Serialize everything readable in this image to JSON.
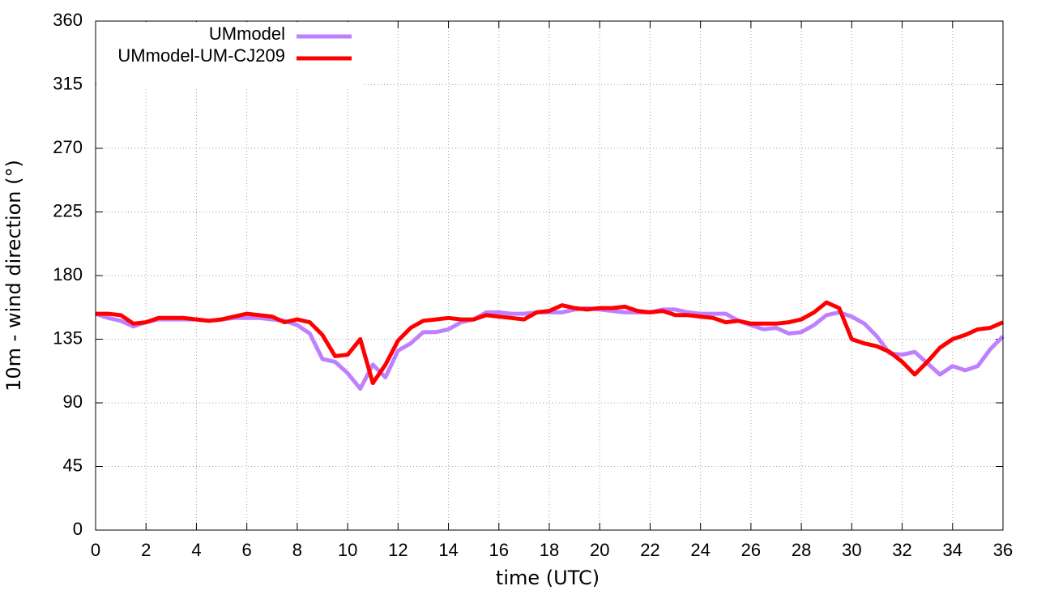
{
  "chart_data": {
    "type": "line",
    "x_label": "time (UTC)",
    "y_label": "10m - wind direction (°)",
    "x": [
      0,
      0.5,
      1,
      1.5,
      2,
      2.5,
      3,
      3.5,
      4,
      4.5,
      5,
      5.5,
      6,
      6.5,
      7,
      7.5,
      8,
      8.5,
      9,
      9.5,
      10,
      10.5,
      11,
      11.5,
      12,
      12.5,
      13,
      13.5,
      14,
      14.5,
      15,
      15.5,
      16,
      16.5,
      17,
      17.5,
      18,
      18.5,
      19,
      19.5,
      20,
      20.5,
      21,
      21.5,
      22,
      22.5,
      23,
      23.5,
      24,
      24.5,
      25,
      25.5,
      26,
      26.5,
      27,
      27.5,
      28,
      28.5,
      29,
      29.5,
      30,
      30.5,
      31,
      31.5,
      32,
      32.5,
      33,
      33.5,
      34,
      34.5,
      35,
      35.5,
      36
    ],
    "series": [
      {
        "name": "UMmodel",
        "color": "#bf80ff",
        "values": [
          153,
          150,
          148,
          144,
          147,
          149,
          149,
          149,
          149,
          148,
          149,
          150,
          150,
          150,
          149,
          148,
          145,
          139,
          121,
          119,
          111,
          100,
          117,
          108,
          127,
          132,
          140,
          140,
          142,
          147,
          149,
          154,
          154,
          153,
          153,
          154,
          154,
          154,
          156,
          157,
          156,
          155,
          154,
          154,
          154,
          156,
          156,
          154,
          153,
          153,
          153,
          148,
          145,
          142,
          143,
          139,
          140,
          145,
          152,
          154,
          151,
          146,
          137,
          125,
          124,
          126,
          118,
          110,
          116,
          113,
          116,
          128,
          137
        ]
      },
      {
        "name": "UMmodel-UM-CJ209",
        "color": "#ff0000",
        "values": [
          153,
          153,
          152,
          146,
          147,
          150,
          150,
          150,
          149,
          148,
          149,
          151,
          153,
          152,
          151,
          147,
          149,
          147,
          138,
          123,
          124,
          135,
          104,
          117,
          134,
          143,
          148,
          149,
          150,
          149,
          149,
          152,
          151,
          150,
          149,
          154,
          155,
          159,
          157,
          156,
          157,
          157,
          158,
          155,
          154,
          155,
          152,
          152,
          151,
          150,
          147,
          148,
          146,
          146,
          146,
          147,
          149,
          154,
          161,
          157,
          135,
          132,
          130,
          126,
          119,
          110,
          119,
          129,
          135,
          138,
          142,
          143,
          147
        ]
      }
    ],
    "xlim": [
      0,
      36
    ],
    "xticks": [
      0,
      2,
      4,
      6,
      8,
      10,
      12,
      14,
      16,
      18,
      20,
      22,
      24,
      26,
      28,
      30,
      32,
      34,
      36
    ],
    "ylim": [
      0,
      360
    ],
    "yticks": [
      0,
      45,
      90,
      135,
      180,
      225,
      270,
      315,
      360
    ],
    "grid": true,
    "legend": "upper left"
  }
}
